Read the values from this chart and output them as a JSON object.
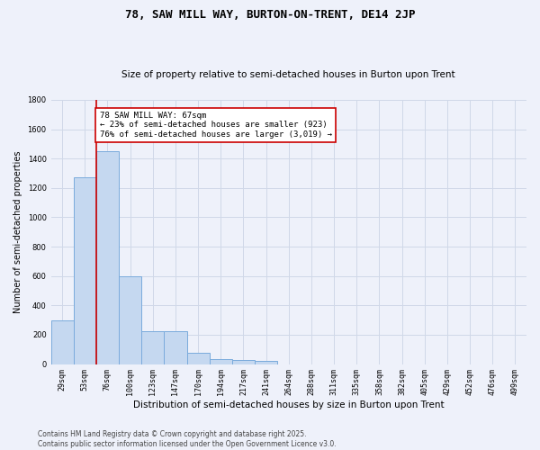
{
  "title": "78, SAW MILL WAY, BURTON-ON-TRENT, DE14 2JP",
  "subtitle": "Size of property relative to semi-detached houses in Burton upon Trent",
  "xlabel": "Distribution of semi-detached houses by size in Burton upon Trent",
  "ylabel": "Number of semi-detached properties",
  "footnote": "Contains HM Land Registry data © Crown copyright and database right 2025.\nContains public sector information licensed under the Open Government Licence v3.0.",
  "bar_labels": [
    "29sqm",
    "53sqm",
    "76sqm",
    "100sqm",
    "123sqm",
    "147sqm",
    "170sqm",
    "194sqm",
    "217sqm",
    "241sqm",
    "264sqm",
    "288sqm",
    "311sqm",
    "335sqm",
    "358sqm",
    "382sqm",
    "405sqm",
    "429sqm",
    "452sqm",
    "476sqm",
    "499sqm"
  ],
  "bar_values": [
    300,
    1270,
    1450,
    600,
    225,
    225,
    75,
    35,
    30,
    20,
    0,
    0,
    0,
    0,
    0,
    0,
    0,
    0,
    0,
    0,
    0
  ],
  "bar_color": "#c5d8f0",
  "bar_edge_color": "#7aabdc",
  "grid_color": "#d0d8e8",
  "background_color": "#eef1fa",
  "annotation_text": "78 SAW MILL WAY: 67sqm\n← 23% of semi-detached houses are smaller (923)\n76% of semi-detached houses are larger (3,019) →",
  "annotation_box_facecolor": "#ffffff",
  "annotation_box_edgecolor": "#cc0000",
  "red_line_color": "#cc0000",
  "ylim": [
    0,
    1800
  ],
  "yticks": [
    0,
    200,
    400,
    600,
    800,
    1000,
    1200,
    1400,
    1600,
    1800
  ],
  "title_fontsize": 9,
  "subtitle_fontsize": 7.5,
  "ylabel_fontsize": 7,
  "xlabel_fontsize": 7.5,
  "tick_fontsize": 6,
  "annotation_fontsize": 6.5,
  "footnote_fontsize": 5.5
}
